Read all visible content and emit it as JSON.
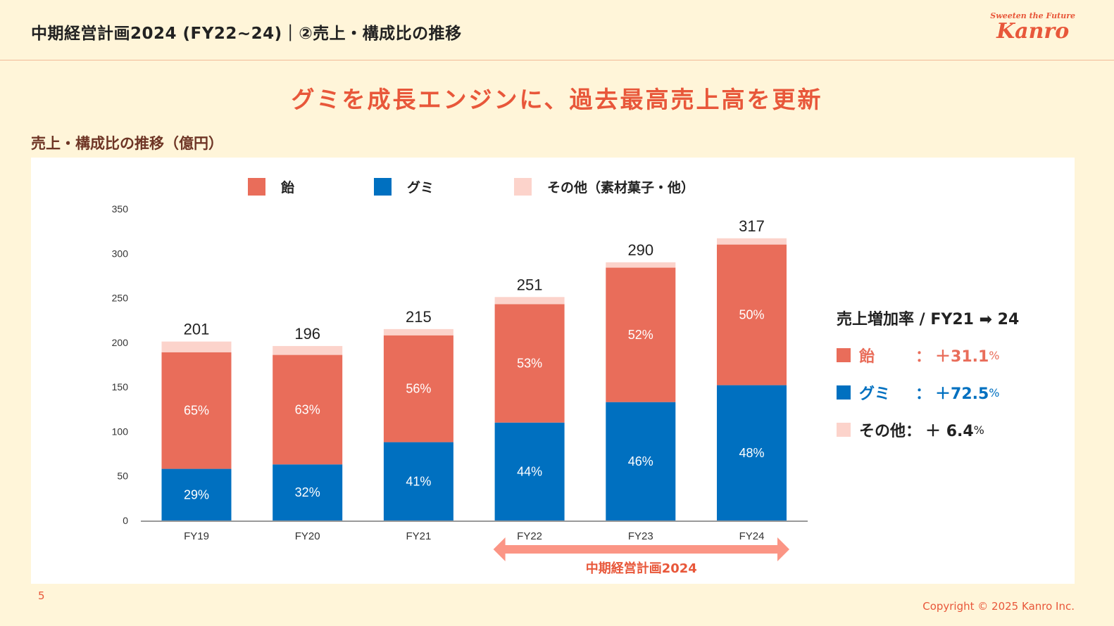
{
  "header": {
    "title": "中期経営計画2024 (FY22~24)｜②売上・構成比の推移",
    "logo_tagline": "Sweeten the Future",
    "logo_brand": "Kanro"
  },
  "headline": "グミを成長エンジンに、過去最高売上高を更新",
  "section_title": "売上・構成比の推移（億円）",
  "colors": {
    "accent": "#e8573a",
    "candy": "#e96d5a",
    "gummy": "#0070c0",
    "other": "#fcd3cb",
    "arrow": "#fb9585",
    "axis": "#999999"
  },
  "legend": [
    {
      "label": "飴",
      "color": "#e96d5a"
    },
    {
      "label": "グミ",
      "color": "#0070c0"
    },
    {
      "label": "その他（素材菓子・他）",
      "color": "#fcd3cb"
    }
  ],
  "chart_data": {
    "type": "bar",
    "stacked": true,
    "title": "売上・構成比の推移（億円）",
    "xlabel": "",
    "ylabel": "億円",
    "categories": [
      "FY19",
      "FY20",
      "FY21",
      "FY22",
      "FY23",
      "FY24"
    ],
    "ylim": [
      0,
      350
    ],
    "yticks": [
      0,
      50,
      100,
      150,
      200,
      250,
      300,
      350
    ],
    "grid": false,
    "legend_position": "top",
    "totals": [
      201,
      196,
      215,
      251,
      290,
      317
    ],
    "series": [
      {
        "name": "グミ",
        "color": "#0070c0",
        "values": [
          58,
          63,
          88,
          110,
          133,
          152
        ],
        "share_labels": [
          "29%",
          "32%",
          "41%",
          "44%",
          "46%",
          "48%"
        ]
      },
      {
        "name": "飴",
        "color": "#e96d5a",
        "values": [
          131,
          123,
          120,
          133,
          151,
          158
        ],
        "share_labels": [
          "65%",
          "63%",
          "56%",
          "53%",
          "52%",
          "50%"
        ]
      },
      {
        "name": "その他（素材菓子・他）",
        "color": "#fcd3cb",
        "values": [
          12,
          10,
          7,
          8,
          6,
          7
        ],
        "share_labels": [
          "",
          "",
          "",
          "",
          "",
          ""
        ]
      }
    ],
    "annotation": {
      "label": "中期経営計画2024",
      "from": "FY22",
      "to": "FY24"
    }
  },
  "growth": {
    "title": "売上増加率 / FY21 ➡ 24",
    "rows": [
      {
        "label": "飴",
        "colon": "：",
        "value": "＋31.1",
        "unit": "%",
        "color": "#e96d5a",
        "text_color": "#e96d5a"
      },
      {
        "label": "グミ",
        "colon": "：",
        "value": "＋72.5",
        "unit": "%",
        "color": "#0070c0",
        "text_color": "#0070c0"
      },
      {
        "label": "その他",
        "colon": "：",
        "value": "＋ 6.4",
        "unit": "%",
        "color": "#fcd3cb",
        "text_color": "#222222"
      }
    ]
  },
  "footer": {
    "page_number": "5",
    "copyright": "Copyright © 2025  Kanro Inc."
  }
}
